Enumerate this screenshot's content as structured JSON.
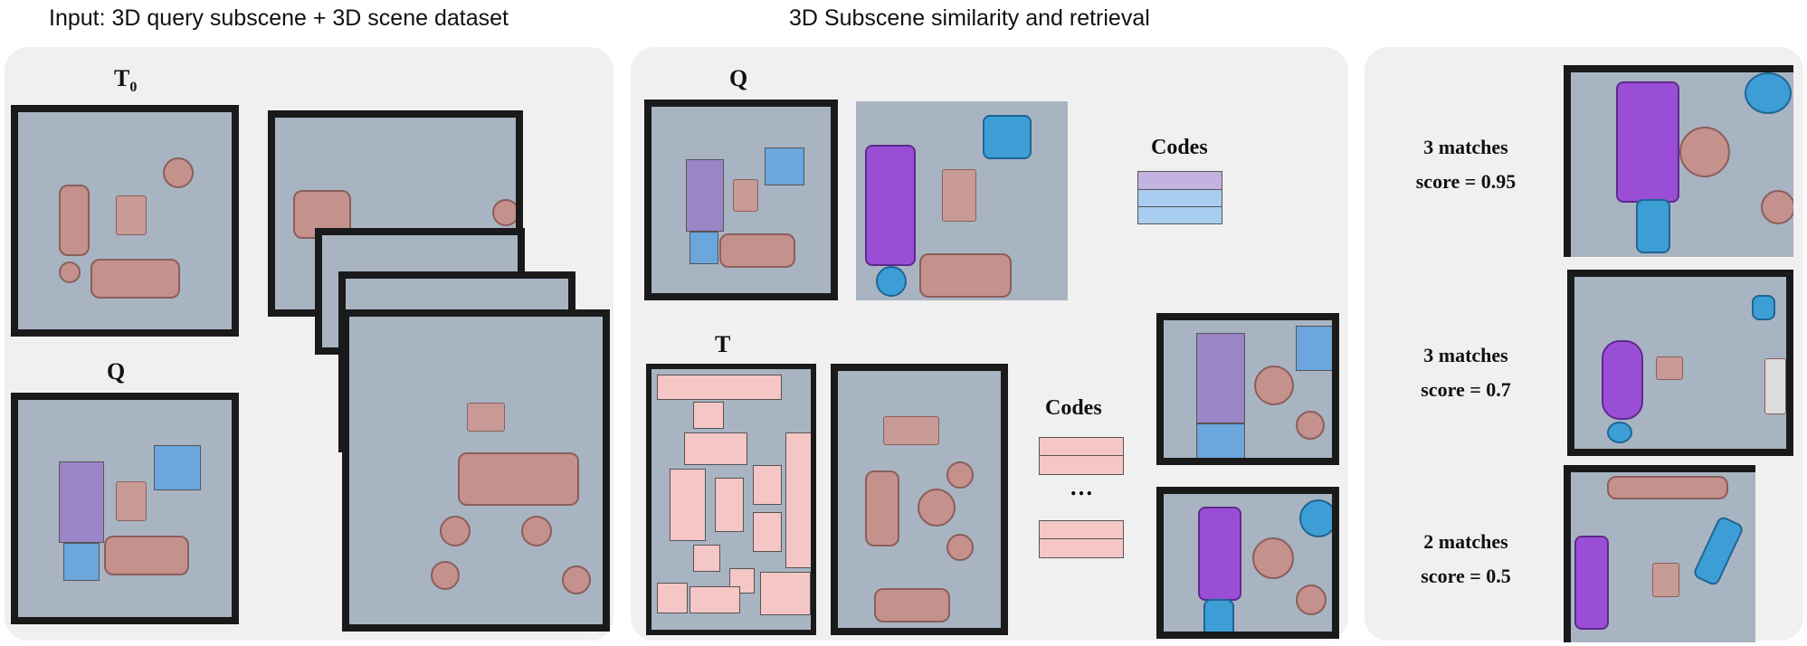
{
  "headings": {
    "left": "Input: 3D query subscene + 3D scene dataset",
    "middle": "3D Subscene similarity and retrieval"
  },
  "labels": {
    "t0_main": "T",
    "t0_sub": "0",
    "q_left": "Q",
    "q_middle": "Q",
    "t_middle": "T",
    "codes_top": "Codes",
    "codes_bottom": "Codes",
    "ellipsis": "…"
  },
  "results": [
    {
      "matches": "3 matches",
      "score": "score = 0.95"
    },
    {
      "matches": "3 matches",
      "score": "score = 0.7"
    },
    {
      "matches": "2 matches",
      "score": "score = 0.5"
    }
  ],
  "colors": {
    "panel_bg": "#f0f0f0",
    "query_box_purple": "#9b85c7",
    "query_box_blue": "#6ba6dc",
    "target_box_pink": "#f4c6c6",
    "floor": "#a9b4c2"
  }
}
